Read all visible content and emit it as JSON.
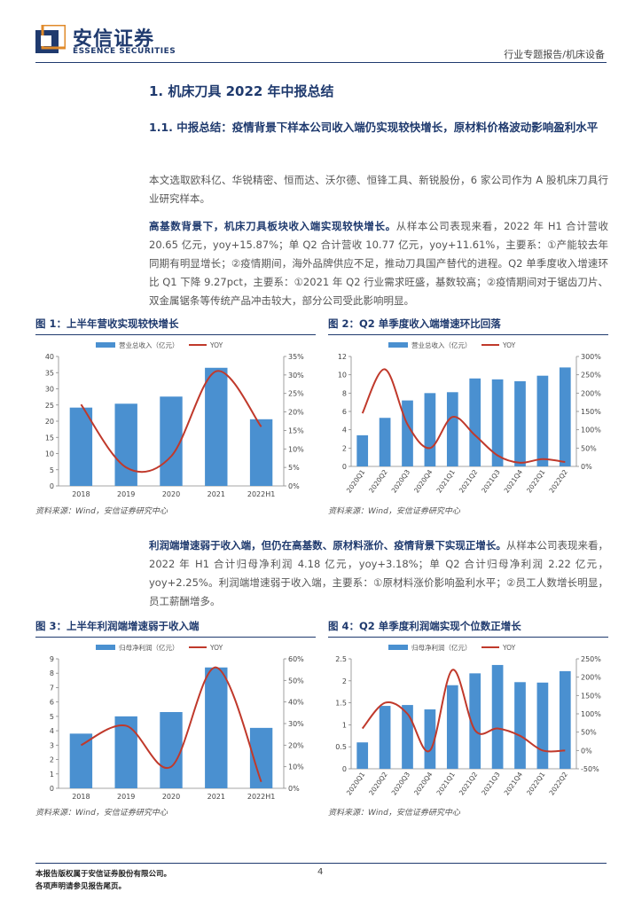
{
  "header": {
    "logo_cn": "安信证券",
    "logo_en": "ESSENCE SECURITIES",
    "right": "行业专题报告/机床设备"
  },
  "section": {
    "h1": "1. 机床刀具 2022 年中报总结",
    "h2": "1.1. 中报总结：疫情背景下样本公司收入端仍实现较快增长，原材料价格波动影响盈利水平",
    "p1": "本文选取欧科亿、华锐精密、恒而达、沃尔德、恒锋工具、新锐股份，6 家公司作为 A 股机床刀具行业研究样本。",
    "p2_bold": "高基数背景下，机床刀具板块收入端实现较快增长。",
    "p2_rest": "从样本公司表现来看，2022 年 H1 合计营收 20.65 亿元，yoy+15.87%；单 Q2 合计营收 10.77 亿元，yoy+11.61%，主要系：①产能较去年同期有明显增长；②疫情期间，海外品牌供应不足，推动刀具国产替代的进程。Q2 单季度收入增速环比 Q1 下降 9.27pct，主要系：①2021 年 Q2 行业需求旺盛，基数较高；②疫情期间对于锯齿刀片、双金属锯条等传统产品冲击较大，部分公司受此影响明显。",
    "p3_bold": "利润端增速弱于收入端，但仍在高基数、原材料涨价、疫情背景下实现正增长。",
    "p3_rest": "从样本公司表现来看，2022 年 H1 合计归母净利润 4.18 亿元，yoy+3.18%；单 Q2 合计归母净利润 2.22 亿元，yoy+2.25%。利润端增速弱于收入端，主要系：①原材料涨价影响盈利水平；②员工人数增长明显，员工薪酬增多。"
  },
  "figures": {
    "f1_title": "图 1：上半年营收实现较快增长",
    "f2_title": "图 2：Q2 单季度收入端增速环比回落",
    "f3_title": "图 3：上半年利润端增速弱于收入端",
    "f4_title": "图 4：Q2 单季度利润端实现个位数正增长",
    "source": "资料来源：Wind，安信证券研究中心"
  },
  "chart_data": [
    {
      "type": "bar",
      "categories": [
        "2018",
        "2019",
        "2020",
        "2021",
        "2022H1"
      ],
      "series": [
        {
          "name": "营业总收入（亿元）",
          "type": "bar",
          "axis": "left",
          "values": [
            24.2,
            25.4,
            27.6,
            36.5,
            20.6
          ]
        },
        {
          "name": "YOY",
          "type": "line",
          "axis": "right",
          "values": [
            0.22,
            0.05,
            0.08,
            0.31,
            0.16
          ]
        }
      ],
      "ylim": [
        0,
        40
      ],
      "yticks": [
        0,
        5,
        10,
        15,
        20,
        25,
        30,
        35,
        40
      ],
      "y2lim": [
        0,
        0.35
      ],
      "y2ticks": [
        "0%",
        "5%",
        "10%",
        "15%",
        "20%",
        "25%",
        "30%",
        "35%"
      ],
      "legend": "top"
    },
    {
      "type": "bar",
      "categories": [
        "2020Q1",
        "2020Q2",
        "2020Q3",
        "2020Q4",
        "2021Q1",
        "2021Q2",
        "2021Q3",
        "2021Q4",
        "2022Q1",
        "2022Q2"
      ],
      "series": [
        {
          "name": "营业总收入（亿元）",
          "type": "bar",
          "axis": "left",
          "values": [
            3.4,
            5.3,
            7.2,
            8.0,
            8.1,
            9.6,
            9.5,
            9.3,
            9.9,
            10.8
          ]
        },
        {
          "name": "YOY",
          "type": "line",
          "axis": "right",
          "values": [
            1.45,
            2.65,
            1.15,
            0.5,
            1.35,
            0.85,
            0.3,
            0.1,
            0.2,
            0.12
          ]
        }
      ],
      "ylim": [
        0,
        12
      ],
      "yticks": [
        0,
        2,
        4,
        6,
        8,
        10,
        12
      ],
      "y2lim": [
        0,
        3.0
      ],
      "y2ticks": [
        "0%",
        "50%",
        "100%",
        "150%",
        "200%",
        "250%",
        "300%"
      ],
      "legend": "top"
    },
    {
      "type": "bar",
      "categories": [
        "2018",
        "2019",
        "2020",
        "2021",
        "2022H1"
      ],
      "series": [
        {
          "name": "归母净利润（亿元）",
          "type": "bar",
          "axis": "left",
          "values": [
            3.8,
            5.0,
            5.3,
            8.4,
            4.2
          ]
        },
        {
          "name": "YOY",
          "type": "line",
          "axis": "right",
          "values": [
            0.2,
            0.29,
            0.1,
            0.56,
            0.03
          ]
        }
      ],
      "ylim": [
        0,
        9
      ],
      "yticks": [
        0,
        1,
        2,
        3,
        4,
        5,
        6,
        7,
        8,
        9
      ],
      "y2lim": [
        0,
        0.6
      ],
      "y2ticks": [
        "0%",
        "10%",
        "20%",
        "30%",
        "40%",
        "50%",
        "60%"
      ],
      "legend": "top"
    },
    {
      "type": "bar",
      "categories": [
        "2020Q1",
        "2020Q2",
        "2020Q3",
        "2020Q4",
        "2021Q1",
        "2021Q2",
        "2021Q3",
        "2021Q4",
        "2022Q1",
        "2022Q2"
      ],
      "series": [
        {
          "name": "归母净利润（亿元）",
          "type": "bar",
          "axis": "left",
          "values": [
            0.6,
            1.43,
            1.45,
            1.35,
            1.9,
            2.17,
            2.36,
            1.97,
            1.96,
            2.22
          ]
        },
        {
          "name": "YOY",
          "type": "line",
          "axis": "right",
          "values": [
            0.6,
            1.3,
            1.0,
            0.0,
            2.2,
            0.55,
            0.6,
            0.4,
            0.0,
            0.0
          ]
        }
      ],
      "ylim": [
        0,
        2.5
      ],
      "yticks": [
        0,
        0.5,
        1,
        1.5,
        2,
        2.5
      ],
      "y2lim": [
        -0.5,
        2.5
      ],
      "y2ticks": [
        "-50%",
        "0%",
        "50%",
        "100%",
        "150%",
        "200%",
        "250%"
      ],
      "legend": "top"
    }
  ],
  "footer": {
    "line1": "本报告版权属于安信证券股份有限公司。",
    "line2": "各项声明请参见报告尾页。",
    "page": "4"
  },
  "colors": {
    "brand": "#1f3a6e",
    "bar": "#4a90d0",
    "line": "#c0392b"
  }
}
